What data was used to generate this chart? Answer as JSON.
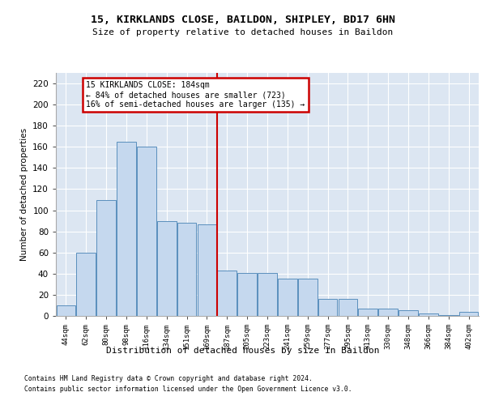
{
  "title1": "15, KIRKLANDS CLOSE, BAILDON, SHIPLEY, BD17 6HN",
  "title2": "Size of property relative to detached houses in Baildon",
  "xlabel": "Distribution of detached houses by size in Baildon",
  "ylabel": "Number of detached properties",
  "footnote1": "Contains HM Land Registry data © Crown copyright and database right 2024.",
  "footnote2": "Contains public sector information licensed under the Open Government Licence v3.0.",
  "categories": [
    "44sqm",
    "62sqm",
    "80sqm",
    "98sqm",
    "116sqm",
    "134sqm",
    "151sqm",
    "169sqm",
    "187sqm",
    "205sqm",
    "223sqm",
    "241sqm",
    "259sqm",
    "277sqm",
    "295sqm",
    "313sqm",
    "330sqm",
    "348sqm",
    "366sqm",
    "384sqm",
    "402sqm"
  ],
  "values": [
    10,
    60,
    110,
    165,
    160,
    90,
    88,
    87,
    43,
    41,
    41,
    35,
    35,
    16,
    16,
    7,
    7,
    5,
    2,
    1,
    4
  ],
  "bar_color": "#c5d8ee",
  "bar_edge_color": "#5a8fbd",
  "vline_index": 8,
  "marker_label": "15 KIRKLANDS CLOSE: 184sqm",
  "annotation_line1": "← 84% of detached houses are smaller (723)",
  "annotation_line2": "16% of semi-detached houses are larger (135) →",
  "annotation_box_facecolor": "#ffffff",
  "annotation_box_edgecolor": "#cc0000",
  "vline_color": "#cc0000",
  "ylim": [
    0,
    230
  ],
  "yticks": [
    0,
    20,
    40,
    60,
    80,
    100,
    120,
    140,
    160,
    180,
    200,
    220
  ],
  "bg_color": "#dce6f2",
  "grid_color": "#ffffff",
  "fig_bg": "#ffffff"
}
